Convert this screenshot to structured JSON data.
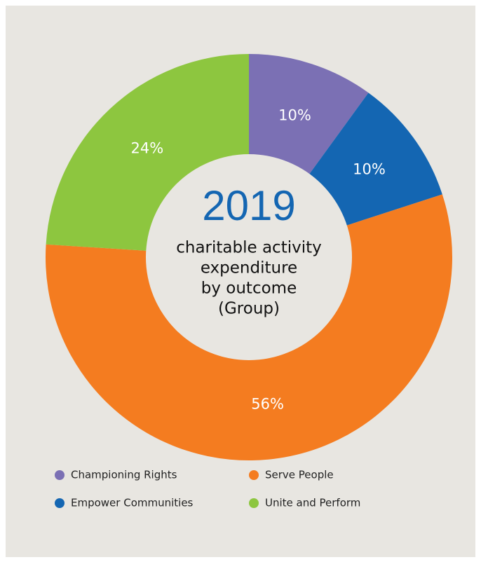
{
  "chart_data": {
    "type": "donut",
    "title": "2019",
    "center_text": [
      "charitable activity",
      "expenditure",
      "by outcome",
      "(Group)"
    ],
    "categories": [
      "Championing Rights",
      "Empower Communities",
      "Serve People",
      "Unite and Perform"
    ],
    "values": [
      10,
      10,
      56,
      24
    ],
    "value_labels": [
      "10%",
      "10%",
      "56%",
      "24%"
    ],
    "colors": [
      "#7b70b4",
      "#1466b2",
      "#f47c20",
      "#8dc63f"
    ]
  }
}
